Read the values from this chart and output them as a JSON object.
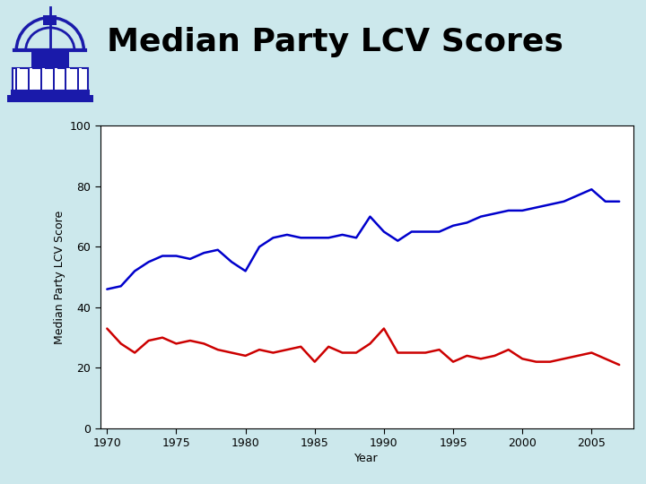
{
  "title": "Median Party LCV Scores",
  "xlabel": "Year",
  "ylabel": "Median Party LCV Score",
  "background_color": "#cce8ec",
  "plot_bg": "#ffffff",
  "blue_color": "#0000cc",
  "red_color": "#cc0000",
  "years": [
    1970,
    1971,
    1972,
    1973,
    1974,
    1975,
    1976,
    1977,
    1978,
    1979,
    1980,
    1981,
    1982,
    1983,
    1984,
    1985,
    1986,
    1987,
    1988,
    1989,
    1990,
    1991,
    1992,
    1993,
    1994,
    1995,
    1996,
    1997,
    1998,
    1999,
    2000,
    2001,
    2002,
    2003,
    2004,
    2005,
    2006,
    2007
  ],
  "dem_scores": [
    46,
    47,
    52,
    55,
    57,
    57,
    56,
    58,
    59,
    55,
    52,
    60,
    63,
    64,
    63,
    63,
    63,
    64,
    63,
    70,
    65,
    62,
    65,
    65,
    65,
    67,
    68,
    70,
    71,
    72,
    72,
    73,
    74,
    75,
    77,
    79,
    75,
    75
  ],
  "rep_scores": [
    33,
    28,
    25,
    29,
    30,
    28,
    29,
    28,
    26,
    25,
    24,
    26,
    25,
    26,
    27,
    22,
    27,
    25,
    25,
    28,
    33,
    25,
    25,
    25,
    26,
    22,
    24,
    23,
    24,
    26,
    23,
    22,
    22,
    23,
    24,
    25,
    23,
    21
  ],
  "ylim": [
    0,
    100
  ],
  "yticks": [
    0,
    20,
    40,
    60,
    80,
    100
  ],
  "xlim": [
    1969.5,
    2008
  ],
  "xticks": [
    1970,
    1975,
    1980,
    1985,
    1990,
    1995,
    2000,
    2005
  ],
  "logo_color": "#1a1aaa",
  "title_fontsize": 26,
  "tick_fontsize": 9,
  "axis_label_fontsize": 9,
  "line_width": 1.8
}
